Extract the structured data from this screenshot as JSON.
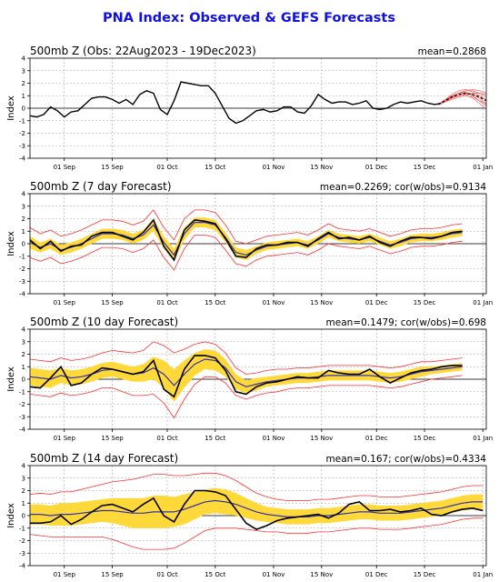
{
  "title": "PNA Index: Observed & GEFS Forecasts",
  "colors": {
    "title": "#1010e0",
    "observed": "#000000",
    "ens_mean": "#3333aa",
    "spread_fill": "#ffd93a",
    "bounds": "#ff3030",
    "members": "#ff6060",
    "grid": "#aaaaaa"
  },
  "chart_data": [
    {
      "type": "line",
      "title": "500mb Z (Obs: 22Aug2023 - 19Dec2023)",
      "stat": "mean=0.2868",
      "ylabel": "Index",
      "ylim": [
        -4,
        4
      ],
      "yticks": [
        "4",
        "3",
        "2",
        "1",
        "0",
        "-1",
        "-2",
        "-3",
        "-4"
      ],
      "xticks": [
        "01 Sep",
        "15 Sep",
        "01 Oct",
        "15 Oct",
        "01 Nov",
        "15 Nov",
        "01 Dec",
        "15 Dec",
        "01 Jan"
      ],
      "xrange": [
        0,
        133
      ],
      "grid": true,
      "observed": {
        "x": [
          0,
          2,
          4,
          6,
          8,
          10,
          12,
          14,
          16,
          18,
          20,
          22,
          24,
          26,
          28,
          30,
          32,
          34,
          36,
          38,
          40,
          42,
          44,
          46,
          48,
          50,
          52,
          54,
          56,
          58,
          60,
          62,
          64,
          66,
          68,
          70,
          72,
          74,
          76,
          78,
          80,
          82,
          84,
          86,
          88,
          90,
          92,
          94,
          96,
          98,
          100,
          102,
          104,
          106,
          108,
          110,
          112,
          114,
          116,
          118,
          120
        ],
        "y": [
          -0.6,
          -0.7,
          -0.5,
          0.1,
          -0.2,
          -0.7,
          -0.3,
          -0.2,
          0.3,
          0.8,
          0.9,
          0.9,
          0.7,
          0.4,
          0.7,
          0.3,
          1.1,
          1.4,
          1.2,
          -0.1,
          -0.5,
          0.6,
          2.1,
          2.0,
          1.9,
          1.8,
          1.8,
          1.2,
          0.2,
          -0.8,
          -1.2,
          -1.0,
          -0.6,
          -0.2,
          -0.1,
          -0.3,
          -0.2,
          0.1,
          0.1,
          -0.3,
          -0.4,
          0.2,
          1.1,
          0.7,
          0.4,
          0.5,
          0.5,
          0.3,
          0.4,
          0.6,
          0.0,
          -0.1,
          0.0,
          0.3,
          0.5,
          0.4,
          0.5,
          0.6,
          0.4,
          0.3,
          0.4
        ]
      },
      "forecast": {
        "x": [
          119,
          121,
          123,
          125,
          127,
          129,
          131,
          133
        ],
        "mean": [
          0.3,
          0.6,
          0.9,
          1.1,
          1.2,
          1.1,
          0.9,
          0.6
        ],
        "members": [
          [
            0.3,
            0.7,
            1.1,
            1.4,
            1.5,
            1.3,
            1.0,
            0.7
          ],
          [
            0.3,
            0.5,
            0.8,
            1.0,
            1.1,
            1.2,
            1.2,
            1.1
          ],
          [
            0.3,
            0.6,
            0.9,
            1.2,
            1.3,
            1.0,
            0.6,
            0.2
          ],
          [
            0.3,
            0.6,
            1.0,
            1.2,
            1.4,
            1.4,
            1.2,
            0.9
          ],
          [
            0.3,
            0.5,
            0.7,
            0.9,
            1.0,
            0.9,
            0.6,
            0.4
          ],
          [
            0.3,
            0.7,
            1.0,
            1.2,
            1.2,
            1.1,
            0.8,
            0.3
          ],
          [
            0.3,
            0.6,
            0.9,
            1.0,
            1.1,
            0.8,
            0.4,
            -0.1
          ],
          [
            0.3,
            0.5,
            0.9,
            1.2,
            1.4,
            1.5,
            1.4,
            1.2
          ]
        ]
      }
    },
    {
      "type": "line",
      "title": "500mb Z (7 day Forecast)",
      "stat": "mean=0.2269; cor(w/obs)=0.9134",
      "ylabel": "Index",
      "ylim": [
        -4,
        4
      ],
      "yticks": [
        "4",
        "3",
        "2",
        "1",
        "0",
        "-1",
        "-2",
        "-3",
        "-4"
      ],
      "xticks": [
        "01 Sep",
        "15 Sep",
        "01 Oct",
        "15 Oct",
        "01 Nov",
        "15 Nov",
        "01 Dec",
        "15 Dec",
        "01 Jan"
      ],
      "xrange": [
        0,
        133
      ],
      "grid": true,
      "x": [
        0,
        3,
        6,
        9,
        12,
        15,
        18,
        21,
        24,
        27,
        30,
        33,
        36,
        39,
        42,
        45,
        48,
        51,
        54,
        57,
        60,
        63,
        66,
        69,
        72,
        75,
        78,
        81,
        84,
        87,
        90,
        93,
        96,
        99,
        102,
        105,
        108,
        111,
        114,
        117,
        120,
        123,
        126
      ],
      "observed": [
        0.3,
        -0.4,
        0.2,
        -0.6,
        -0.2,
        -0.1,
        0.6,
        0.9,
        0.9,
        0.6,
        0.3,
        0.9,
        1.9,
        -0.2,
        -1.3,
        1.1,
        1.9,
        1.8,
        1.6,
        0.4,
        -1.0,
        -1.1,
        -0.4,
        -0.1,
        -0.1,
        0.1,
        0.1,
        -0.2,
        0.4,
        0.9,
        0.4,
        0.5,
        0.3,
        0.6,
        0.1,
        -0.2,
        0.2,
        0.5,
        0.5,
        0.4,
        0.6,
        0.9,
        1.0
      ],
      "ens_mean": [
        0.1,
        -0.3,
        0.0,
        -0.5,
        -0.3,
        0.0,
        0.4,
        0.8,
        0.8,
        0.7,
        0.4,
        0.7,
        1.5,
        0.1,
        -0.9,
        0.8,
        1.7,
        1.7,
        1.5,
        0.5,
        -0.7,
        -0.9,
        -0.5,
        -0.2,
        -0.1,
        0.0,
        0.1,
        -0.1,
        0.3,
        0.8,
        0.5,
        0.4,
        0.3,
        0.5,
        0.2,
        -0.1,
        0.1,
        0.4,
        0.5,
        0.5,
        0.6,
        0.8,
        0.9
      ],
      "spread": [
        0.5,
        0.4,
        0.4,
        0.4,
        0.4,
        0.4,
        0.4,
        0.4,
        0.4,
        0.4,
        0.4,
        0.4,
        0.5,
        0.5,
        0.5,
        0.5,
        0.4,
        0.4,
        0.4,
        0.4,
        0.4,
        0.4,
        0.3,
        0.3,
        0.3,
        0.3,
        0.3,
        0.3,
        0.3,
        0.3,
        0.3,
        0.3,
        0.3,
        0.3,
        0.3,
        0.3,
        0.3,
        0.3,
        0.3,
        0.3,
        0.3,
        0.3,
        0.3
      ],
      "bound": [
        1.2,
        1.1,
        1.1,
        1.1,
        1.1,
        1.1,
        1.1,
        1.1,
        1.1,
        1.1,
        1.1,
        1.1,
        1.2,
        1.2,
        1.2,
        1.2,
        1.0,
        1.0,
        1.0,
        1.0,
        0.9,
        0.9,
        0.8,
        0.8,
        0.8,
        0.8,
        0.8,
        0.8,
        0.8,
        0.8,
        0.7,
        0.7,
        0.7,
        0.7,
        0.7,
        0.7,
        0.7,
        0.7,
        0.7,
        0.7,
        0.7,
        0.7,
        0.7
      ]
    },
    {
      "type": "line",
      "title": "500mb Z (10 day Forecast)",
      "stat": "mean=0.1479; cor(w/obs)=0.698",
      "ylabel": "Index",
      "ylim": [
        -4,
        4
      ],
      "yticks": [
        "4",
        "3",
        "2",
        "1",
        "0",
        "-1",
        "-2",
        "-3",
        "-4"
      ],
      "xticks": [
        "01 Sep",
        "15 Sep",
        "01 Oct",
        "15 Oct",
        "01 Nov",
        "15 Nov",
        "01 Dec",
        "15 Dec",
        "01 Jan"
      ],
      "xrange": [
        0,
        133
      ],
      "grid": true,
      "x": [
        0,
        3,
        6,
        9,
        12,
        15,
        18,
        21,
        24,
        27,
        30,
        33,
        36,
        39,
        42,
        45,
        48,
        51,
        54,
        57,
        60,
        63,
        66,
        69,
        72,
        75,
        78,
        81,
        84,
        87,
        90,
        93,
        96,
        99,
        102,
        105,
        108,
        111,
        114,
        117,
        120,
        123,
        126
      ],
      "observed": [
        -0.6,
        -0.7,
        0.1,
        1.0,
        -0.5,
        -0.3,
        0.4,
        0.9,
        0.8,
        0.6,
        0.4,
        0.6,
        1.5,
        -0.8,
        -1.4,
        0.8,
        1.9,
        1.9,
        1.7,
        0.7,
        -1.0,
        -1.2,
        -0.6,
        -0.3,
        -0.2,
        0.0,
        0.2,
        0.1,
        0.1,
        0.7,
        0.5,
        0.4,
        0.4,
        0.8,
        0.2,
        -0.3,
        0.1,
        0.5,
        0.7,
        0.8,
        1.0,
        1.1,
        1.1
      ],
      "ens_mean": [
        0.2,
        0.1,
        0.0,
        0.3,
        0.1,
        0.2,
        0.4,
        0.7,
        0.8,
        0.6,
        0.4,
        0.5,
        0.9,
        0.4,
        -0.5,
        0.4,
        1.2,
        1.6,
        1.5,
        0.9,
        -0.2,
        -0.6,
        -0.4,
        -0.2,
        -0.1,
        0.0,
        0.1,
        0.1,
        0.2,
        0.3,
        0.3,
        0.3,
        0.3,
        0.3,
        0.2,
        0.1,
        0.2,
        0.4,
        0.6,
        0.7,
        0.8,
        0.9,
        1.0
      ],
      "spread": [
        0.7,
        0.7,
        0.7,
        0.6,
        0.6,
        0.6,
        0.6,
        0.6,
        0.6,
        0.6,
        0.6,
        0.7,
        0.9,
        1.1,
        1.3,
        1.1,
        0.9,
        0.8,
        0.8,
        0.7,
        0.6,
        0.5,
        0.5,
        0.4,
        0.4,
        0.4,
        0.4,
        0.4,
        0.4,
        0.4,
        0.4,
        0.4,
        0.4,
        0.4,
        0.4,
        0.4,
        0.4,
        0.4,
        0.4,
        0.3,
        0.3,
        0.3,
        0.3
      ],
      "bound": [
        1.4,
        1.4,
        1.4,
        1.4,
        1.4,
        1.4,
        1.4,
        1.4,
        1.5,
        1.6,
        1.7,
        1.8,
        2.1,
        2.3,
        2.6,
        2.0,
        1.6,
        1.4,
        1.3,
        1.2,
        1.1,
        1.0,
        0.9,
        0.9,
        0.9,
        0.8,
        0.8,
        0.8,
        0.8,
        0.8,
        0.8,
        0.8,
        0.8,
        0.8,
        0.8,
        0.8,
        0.8,
        0.8,
        0.8,
        0.7,
        0.7,
        0.7,
        0.7
      ]
    },
    {
      "type": "line",
      "title": "500mb Z (14 day Forecast)",
      "stat": "mean=0.167; cor(w/obs)=0.4334",
      "ylabel": "Index",
      "ylim": [
        -4,
        4
      ],
      "yticks": [
        "4",
        "3",
        "2",
        "1",
        "0",
        "-1",
        "-2",
        "-3",
        "-4"
      ],
      "xticks": [
        "01 Sep",
        "15 Sep",
        "01 Oct",
        "15 Oct",
        "01 Nov",
        "15 Nov",
        "01 Dec",
        "15 Dec",
        "01 Jan"
      ],
      "xrange": [
        0,
        133
      ],
      "grid": true,
      "x": [
        0,
        3,
        6,
        9,
        12,
        15,
        18,
        21,
        24,
        27,
        30,
        33,
        36,
        39,
        42,
        45,
        48,
        51,
        54,
        57,
        60,
        63,
        66,
        69,
        72,
        75,
        78,
        81,
        84,
        87,
        90,
        93,
        96,
        99,
        102,
        105,
        108,
        111,
        114,
        117,
        120,
        123,
        126,
        129,
        132
      ],
      "observed": [
        -0.6,
        -0.6,
        -0.5,
        0.0,
        -0.7,
        -0.3,
        0.3,
        0.8,
        0.9,
        0.6,
        0.3,
        0.9,
        1.4,
        0.0,
        -0.5,
        0.9,
        2.0,
        2.0,
        1.9,
        1.6,
        0.5,
        -0.6,
        -1.1,
        -0.8,
        -0.4,
        -0.2,
        -0.1,
        0.0,
        0.1,
        -0.2,
        0.2,
        0.9,
        1.1,
        0.4,
        0.4,
        0.5,
        0.3,
        0.4,
        0.6,
        0.1,
        0.0,
        0.3,
        0.5,
        0.6,
        0.4
      ],
      "ens_mean": [
        0.1,
        0.1,
        0.0,
        0.1,
        0.1,
        0.2,
        0.3,
        0.4,
        0.4,
        0.3,
        0.2,
        0.2,
        0.3,
        0.3,
        0.3,
        0.5,
        0.8,
        1.1,
        1.2,
        1.1,
        0.9,
        0.6,
        0.3,
        0.1,
        0.0,
        -0.1,
        -0.1,
        -0.1,
        0.0,
        0.0,
        0.1,
        0.2,
        0.3,
        0.3,
        0.2,
        0.2,
        0.2,
        0.3,
        0.4,
        0.5,
        0.6,
        0.8,
        1.0,
        1.1,
        1.1
      ],
      "spread": [
        0.8,
        0.8,
        0.8,
        0.9,
        0.9,
        0.9,
        0.9,
        0.9,
        1.0,
        1.1,
        1.2,
        1.2,
        1.3,
        1.3,
        1.2,
        1.2,
        1.1,
        1.0,
        1.0,
        1.0,
        0.9,
        0.8,
        0.7,
        0.6,
        0.6,
        0.6,
        0.6,
        0.6,
        0.6,
        0.6,
        0.6,
        0.6,
        0.6,
        0.6,
        0.6,
        0.6,
        0.6,
        0.6,
        0.6,
        0.6,
        0.6,
        0.6,
        0.6,
        0.6,
        0.6
      ],
      "bound": [
        1.6,
        1.7,
        1.7,
        1.8,
        1.8,
        1.9,
        2.0,
        2.1,
        2.3,
        2.5,
        2.7,
        2.9,
        3.0,
        3.0,
        2.9,
        2.7,
        2.5,
        2.3,
        2.2,
        2.1,
        1.9,
        1.7,
        1.5,
        1.4,
        1.3,
        1.3,
        1.3,
        1.3,
        1.3,
        1.3,
        1.3,
        1.3,
        1.3,
        1.3,
        1.3,
        1.3,
        1.3,
        1.3,
        1.3,
        1.3,
        1.3,
        1.3,
        1.3,
        1.3,
        1.3
      ]
    }
  ]
}
